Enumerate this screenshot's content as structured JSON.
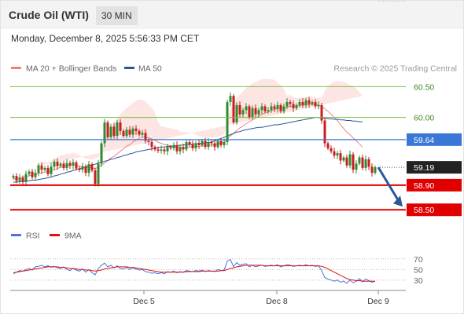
{
  "header": {
    "instrument": "Crude Oil (WTI)",
    "timeframe": "30 MIN",
    "datetime": "Monday, December 8, 2025 5:56:33 PM CET"
  },
  "legend": {
    "ma20_label": "MA 20 + Bollinger Bands",
    "ma20_color": "#f08080",
    "ma50_label": "MA 50",
    "ma50_color": "#2b5797",
    "copyright": "Research © 2025 Trading Central"
  },
  "rsi_legend": {
    "rsi_label": "RSI",
    "rsi_color": "#4a74d9",
    "ma_label": "9MA",
    "ma_color": "#e01010"
  },
  "colors": {
    "bull": "#2e8b2e",
    "bear": "#c81e1e",
    "resistance": "#7bbf4a",
    "support": "#e00000",
    "pivot": "#3a78d6",
    "current": "#222222",
    "arrow": "#2b5797"
  },
  "chart_data": [
    {
      "type": "candlestick",
      "x_ticks": [
        "Dec 5",
        "Dec 8",
        "Dec 9"
      ],
      "ylim": [
        58.35,
        60.62
      ],
      "levels": [
        {
          "value": 60.5,
          "label": "60.50",
          "kind": "resistance"
        },
        {
          "value": 60.0,
          "label": "60.00",
          "kind": "resistance"
        },
        {
          "value": 59.64,
          "label": "59.64",
          "kind": "pivot"
        },
        {
          "value": 59.19,
          "label": "59.19",
          "kind": "current"
        },
        {
          "value": 58.9,
          "label": "58.90",
          "kind": "support"
        },
        {
          "value": 58.5,
          "label": "58.50",
          "kind": "support"
        }
      ],
      "forecast": {
        "from": 59.19,
        "to": 58.5
      },
      "closes": [
        59.05,
        58.97,
        59.02,
        58.95,
        59.08,
        59.12,
        59.03,
        59.1,
        59.22,
        59.15,
        59.18,
        59.08,
        59.2,
        59.28,
        59.21,
        59.25,
        59.18,
        59.26,
        59.22,
        59.27,
        59.17,
        59.15,
        59.2,
        59.1,
        59.24,
        59.14,
        58.92,
        59.25,
        59.58,
        59.92,
        59.68,
        59.85,
        59.7,
        59.92,
        59.78,
        59.7,
        59.8,
        59.72,
        59.82,
        59.78,
        59.72,
        59.75,
        59.62,
        59.6,
        59.52,
        59.48,
        59.46,
        59.48,
        59.45,
        59.52,
        59.5,
        59.55,
        59.45,
        59.52,
        59.48,
        59.6,
        59.56,
        59.5,
        59.58,
        59.55,
        59.62,
        59.52,
        59.6,
        59.58,
        59.52,
        59.62,
        59.55,
        59.6,
        60.25,
        60.35,
        59.92,
        60.2,
        60.05,
        60.12,
        60.18,
        60.0,
        60.15,
        60.05,
        60.12,
        60.18,
        60.1,
        60.12,
        60.18,
        60.14,
        60.2,
        60.1,
        60.18,
        60.25,
        60.22,
        60.15,
        60.2,
        60.25,
        60.2,
        60.28,
        60.22,
        60.25,
        60.18,
        60.2,
        59.95,
        59.58,
        59.5,
        59.45,
        59.38,
        59.42,
        59.3,
        59.35,
        59.22,
        59.4,
        59.15,
        59.25,
        59.35,
        59.18,
        59.32,
        59.2,
        59.1,
        59.19
      ],
      "ma20": [
        59.0,
        59.01,
        59.02,
        59.03,
        59.04,
        59.05,
        59.07,
        59.08,
        59.09,
        59.1,
        59.11,
        59.12,
        59.13,
        59.15,
        59.17,
        59.19,
        59.2,
        59.21,
        59.22,
        59.23,
        59.22,
        59.21,
        59.2,
        59.19,
        59.19,
        59.18,
        59.17,
        59.19,
        59.22,
        59.26,
        59.3,
        59.34,
        59.37,
        59.41,
        59.45,
        59.49,
        59.53,
        59.56,
        59.6,
        59.63,
        59.66,
        59.68,
        59.68,
        59.67,
        59.65,
        59.63,
        59.6,
        59.58,
        59.56,
        59.55,
        59.54,
        59.53,
        59.52,
        59.51,
        59.51,
        59.51,
        59.52,
        59.52,
        59.53,
        59.53,
        59.54,
        59.54,
        59.55,
        59.55,
        59.56,
        59.57,
        59.58,
        59.6,
        59.65,
        59.7,
        59.74,
        59.79,
        59.83,
        59.86,
        59.9,
        59.93,
        59.96,
        59.99,
        60.02,
        60.05,
        60.07,
        60.09,
        60.11,
        60.13,
        60.14,
        60.15,
        60.16,
        60.17,
        60.18,
        60.18,
        60.19,
        60.19,
        60.2,
        60.2,
        60.21,
        60.21,
        60.21,
        60.2,
        60.18,
        60.14,
        60.1,
        60.05,
        60.0,
        59.95,
        59.88,
        59.82,
        59.76,
        59.72,
        59.67,
        59.62,
        59.57,
        59.52
      ],
      "ma50": [
        58.95,
        58.95,
        58.96,
        58.96,
        58.97,
        58.97,
        58.98,
        58.98,
        58.99,
        59.0,
        59.01,
        59.02,
        59.03,
        59.05,
        59.06,
        59.08,
        59.09,
        59.11,
        59.12,
        59.14,
        59.15,
        59.17,
        59.18,
        59.2,
        59.21,
        59.23,
        59.24,
        59.26,
        59.27,
        59.29,
        59.3,
        59.32,
        59.33,
        59.35,
        59.36,
        59.38,
        59.39,
        59.41,
        59.42,
        59.44,
        59.45,
        59.46,
        59.47,
        59.48,
        59.49,
        59.5,
        59.51,
        59.52,
        59.52,
        59.53,
        59.53,
        59.54,
        59.54,
        59.55,
        59.55,
        59.56,
        59.56,
        59.57,
        59.57,
        59.58,
        59.58,
        59.59,
        59.59,
        59.6,
        59.62,
        59.64,
        59.66,
        59.68,
        59.7,
        59.72,
        59.74,
        59.76,
        59.77,
        59.79,
        59.8,
        59.81,
        59.82,
        59.83,
        59.84,
        59.84,
        59.85,
        59.86,
        59.87,
        59.88,
        59.88,
        59.89,
        59.9,
        59.91,
        59.92,
        59.93,
        59.94,
        59.95,
        59.96,
        59.97,
        59.98,
        59.99,
        60.0,
        60.0,
        59.99,
        59.99,
        59.98,
        59.98,
        59.97,
        59.97,
        59.96,
        59.96,
        59.95,
        59.95,
        59.94,
        59.94,
        59.93,
        59.93
      ]
    },
    {
      "type": "line",
      "name": "RSI",
      "y_ticks": [
        70,
        50,
        30
      ],
      "ylim": [
        12,
        86
      ],
      "series": [
        {
          "name": "RSI",
          "values": [
            42,
            45,
            48,
            47,
            50,
            52,
            49,
            55,
            56,
            58,
            55,
            57,
            54,
            56,
            53,
            52,
            55,
            50,
            48,
            52,
            49,
            47,
            51,
            45,
            50,
            44,
            40,
            52,
            58,
            62,
            55,
            58,
            53,
            57,
            52,
            51,
            54,
            50,
            53,
            51,
            49,
            50,
            46,
            45,
            43,
            44,
            42,
            44,
            42,
            46,
            45,
            47,
            44,
            46,
            45,
            48,
            47,
            46,
            48,
            47,
            49,
            46,
            48,
            47,
            46,
            50,
            48,
            49,
            66,
            69,
            55,
            63,
            58,
            60,
            61,
            55,
            58,
            55,
            57,
            58,
            56,
            57,
            58,
            57,
            59,
            55,
            57,
            59,
            58,
            56,
            57,
            58,
            57,
            59,
            57,
            58,
            56,
            57,
            48,
            35,
            32,
            30,
            28,
            30,
            26,
            28,
            24,
            30,
            25,
            28,
            33,
            27,
            32,
            29,
            26,
            28
          ]
        },
        {
          "name": "9MA",
          "values": [
            44,
            45,
            46,
            47,
            48,
            49,
            50,
            51,
            52,
            53,
            54,
            55,
            55,
            55,
            55,
            54,
            54,
            53,
            52,
            52,
            51,
            50,
            50,
            49,
            49,
            48,
            47,
            48,
            49,
            51,
            52,
            53,
            54,
            55,
            55,
            55,
            55,
            54,
            54,
            53,
            52,
            51,
            50,
            49,
            48,
            47,
            46,
            45,
            45,
            45,
            45,
            45,
            45,
            45,
            45,
            46,
            46,
            46,
            46,
            46,
            47,
            47,
            47,
            47,
            47,
            47,
            48,
            48,
            50,
            52,
            53,
            55,
            56,
            57,
            58,
            58,
            58,
            58,
            58,
            58,
            57,
            57,
            57,
            57,
            57,
            57,
            57,
            57,
            57,
            57,
            57,
            57,
            57,
            57,
            57,
            57,
            57,
            57,
            56,
            54,
            51,
            48,
            45,
            42,
            39,
            36,
            33,
            31,
            30,
            29,
            29,
            28,
            28,
            28,
            28,
            28
          ]
        }
      ]
    }
  ]
}
